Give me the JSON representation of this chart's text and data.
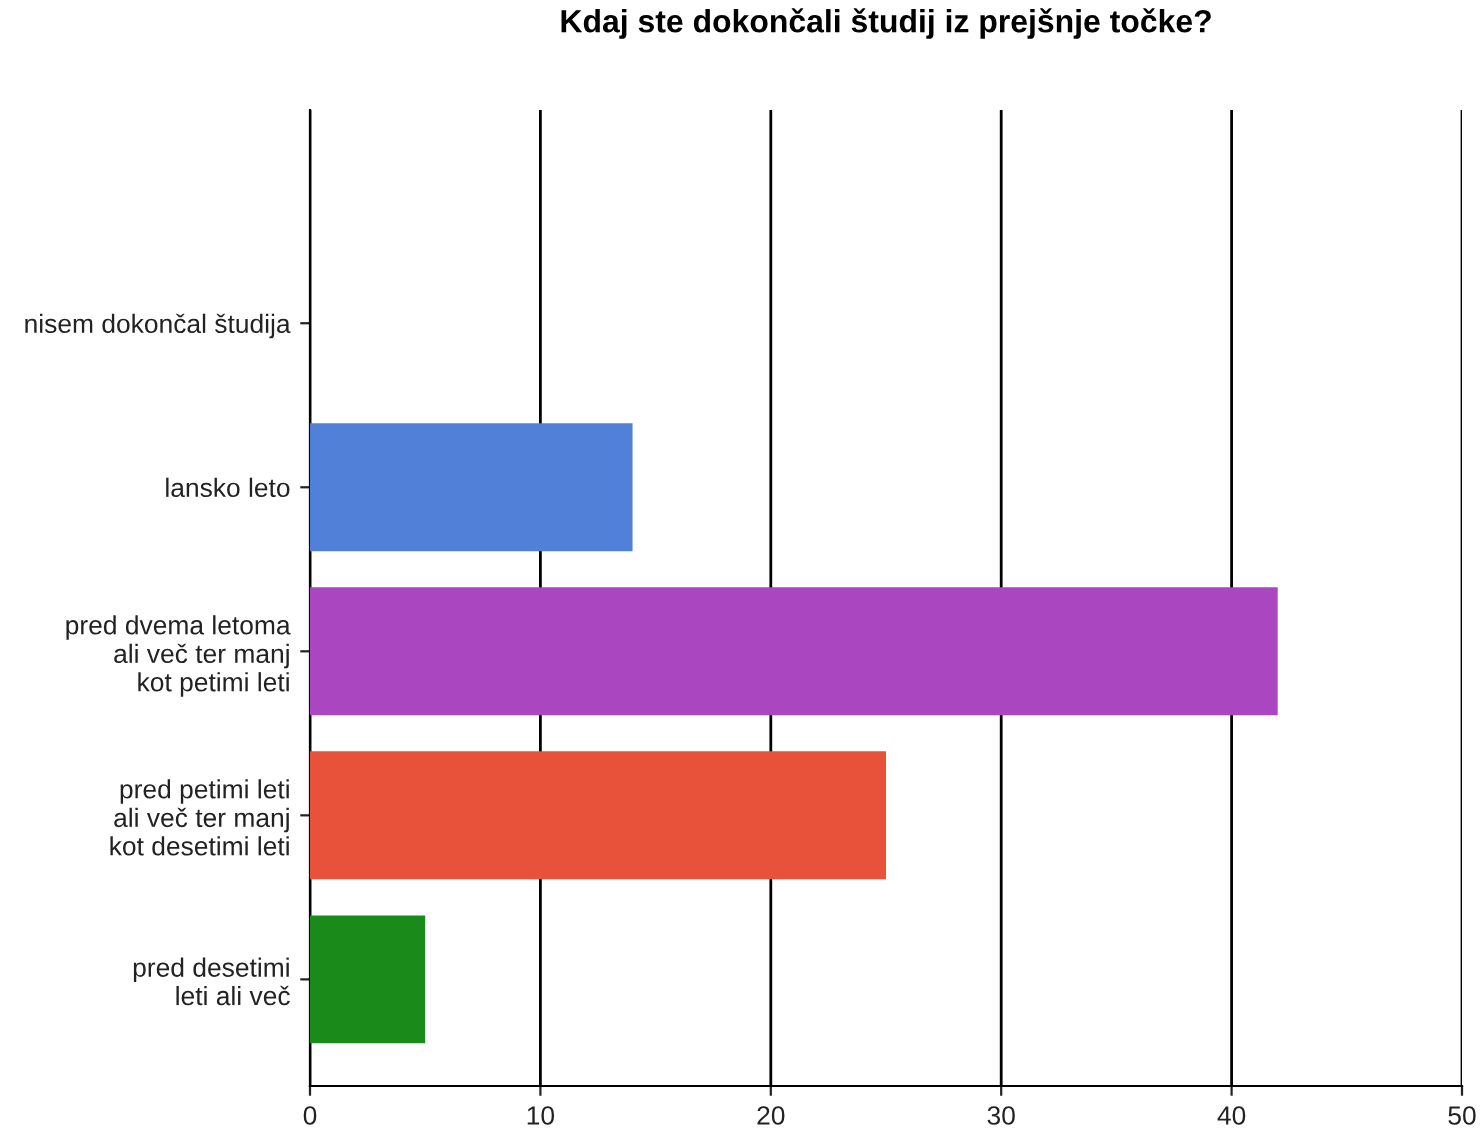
{
  "chart_data": {
    "type": "bar",
    "orientation": "horizontal",
    "title": "Kdaj ste dokončali študij iz prejšnje točke?",
    "categories": [
      "nisem dokončal študija",
      "lansko leto",
      "pred dvema letoma\nali več ter manj\nkot petimi leti",
      "pred petimi leti\nali več ter manj\nkot desetimi leti",
      "pred desetimi\nleti ali več"
    ],
    "values": [
      0,
      14,
      42,
      25,
      5
    ],
    "colors": [
      "#5080d8",
      "#5080d8",
      "#a946c0",
      "#e8523a",
      "#1a8a1a"
    ],
    "xlim": [
      0,
      50
    ],
    "xticks": [
      0,
      10,
      20,
      30,
      40,
      50
    ],
    "grid": "x",
    "legend": false
  }
}
